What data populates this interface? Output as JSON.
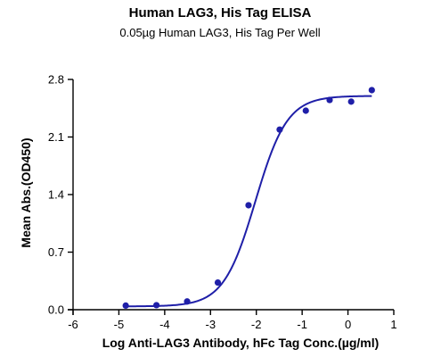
{
  "chart_data": {
    "type": "scatter",
    "title": "Human LAG3, His Tag ELISA",
    "subtitle": "0.05µg Human LAG3, His Tag Per Well",
    "xlabel": "Log Anti-LAG3 Antibody, hFc Tag Conc.(µg/ml)",
    "ylabel": "Mean Abs.(OD450)",
    "xlim": [
      -6,
      1
    ],
    "ylim": [
      0.0,
      2.8
    ],
    "x_ticks": [
      "-6",
      "-5",
      "-4",
      "-3",
      "-2",
      "-1",
      "0",
      "1"
    ],
    "y_ticks": [
      "0.0",
      "0.7",
      "1.4",
      "2.1",
      "2.8"
    ],
    "grid": false,
    "colors": {
      "series": "#1f1fa8",
      "axis": "#000000"
    },
    "series": [
      {
        "x": [
          -4.85,
          -4.18,
          -3.51,
          -2.84,
          -2.17,
          -1.49,
          -0.92,
          -0.4,
          0.07,
          0.52
        ],
        "y": [
          0.05,
          0.055,
          0.1,
          0.33,
          1.27,
          2.19,
          2.42,
          2.55,
          2.53,
          2.67
        ]
      }
    ],
    "fit": {
      "model": "4PL",
      "bottom": 0.04,
      "top": 2.6,
      "logEC50": -2.02,
      "hill": 1.25
    }
  }
}
